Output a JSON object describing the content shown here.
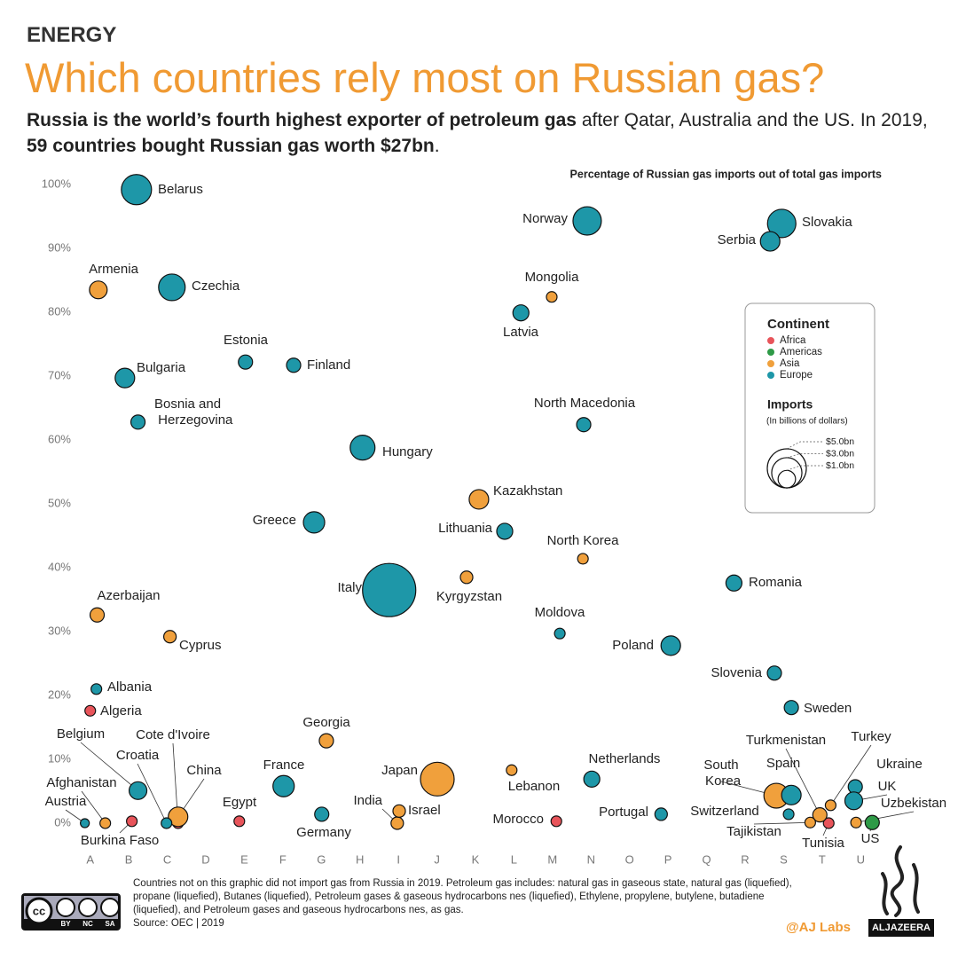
{
  "header": {
    "kicker": "ENERGY",
    "title": "Which countries rely most on Russian gas?",
    "subtitle": [
      {
        "text": "Russia is the world’s fourth highest exporter of petroleum gas",
        "bold": true
      },
      {
        "text": " after Qatar, Australia and the US. In 2019, ",
        "bold": false
      },
      {
        "text": "59 countries bought Russian gas worth $27bn",
        "bold": true
      },
      {
        "text": ".",
        "bold": false
      }
    ]
  },
  "chart_data": {
    "type": "bubble",
    "y_label": "Percentage of Russian gas imports out of total gas imports",
    "xlim": [
      -0.5,
      20.5
    ],
    "ylim": [
      0,
      100
    ],
    "xticks": [
      {
        "value": 0,
        "label": "A"
      },
      {
        "value": 1,
        "label": "B"
      },
      {
        "value": 2,
        "label": "C"
      },
      {
        "value": 3,
        "label": "D"
      },
      {
        "value": 4,
        "label": "E"
      },
      {
        "value": 5,
        "label": "F"
      },
      {
        "value": 6,
        "label": "G"
      },
      {
        "value": 7,
        "label": "H"
      },
      {
        "value": 8,
        "label": "I"
      },
      {
        "value": 9,
        "label": "J"
      },
      {
        "value": 10,
        "label": "K"
      },
      {
        "value": 11,
        "label": "L"
      },
      {
        "value": 12,
        "label": "M"
      },
      {
        "value": 13,
        "label": "N"
      },
      {
        "value": 14,
        "label": "O"
      },
      {
        "value": 15,
        "label": "P"
      },
      {
        "value": 16,
        "label": "Q"
      },
      {
        "value": 17,
        "label": "R"
      },
      {
        "value": 18,
        "label": "S"
      },
      {
        "value": 19,
        "label": "T"
      },
      {
        "value": 20,
        "label": "U"
      }
    ],
    "yticks": [
      {
        "value": 0,
        "label": "0%"
      },
      {
        "value": 10,
        "label": "10%"
      },
      {
        "value": 20,
        "label": "20%"
      },
      {
        "value": 30,
        "label": "30%"
      },
      {
        "value": 40,
        "label": "40%"
      },
      {
        "value": 50,
        "label": "50%"
      },
      {
        "value": 60,
        "label": "60%"
      },
      {
        "value": 70,
        "label": "70%"
      },
      {
        "value": 80,
        "label": "80%"
      },
      {
        "value": 90,
        "label": "90%"
      },
      {
        "value": 100,
        "label": "100%"
      }
    ],
    "grid": false,
    "legend_title": "Continent",
    "size_legend": {
      "title": "Imports",
      "subtitle": "(In billions of dollars)",
      "values": [
        {
          "value": 5,
          "label": "$5.0bn"
        },
        {
          "value": 3,
          "label": "$3.0bn"
        },
        {
          "value": 1,
          "label": "$1.0bn"
        }
      ]
    },
    "series": [
      {
        "name": "Africa",
        "color": "#e8545a",
        "labels": [
          "Algeria",
          "Burkina Faso",
          "Cote d'Ivoire",
          "Egypt",
          "Morocco",
          "Tunisia"
        ],
        "x": [
          0,
          1.08,
          2.28,
          3.87,
          12.1,
          19.17
        ],
        "values": [
          17.6,
          0.3,
          0,
          0.3,
          0.3,
          0
        ],
        "sizes": [
          0.37,
          0.37,
          0.37,
          0.37,
          0.37,
          0.37
        ]
      },
      {
        "name": "Americas",
        "color": "#2e9a47",
        "labels": [
          "US"
        ],
        "x": [
          20.3
        ],
        "values": [
          0.1
        ],
        "sizes": [
          0.66
        ]
      },
      {
        "name": "Asia",
        "color": "#f0a03c",
        "labels": [
          "Armenia",
          "Mongolia",
          "Kazakhstan",
          "North Korea",
          "Kyrgyzstan",
          "Azerbaijan",
          "Cyprus",
          "Georgia",
          "Japan",
          "Lebanon",
          "India",
          "Israel",
          "China",
          "Afghanistan",
          "South Korea",
          "Turkmenistan",
          "Turkey",
          "Tajikistan",
          "Uzbekistan"
        ],
        "x": [
          0.21,
          11.98,
          10.09,
          12.79,
          9.77,
          0.18,
          2.07,
          6.13,
          9.01,
          10.94,
          7.97,
          8.02,
          2.28,
          0.39,
          17.81,
          18.94,
          19.22,
          18.69,
          19.88
        ],
        "values": [
          83.5,
          82.4,
          50.7,
          41.4,
          38.5,
          32.6,
          29.2,
          12.9,
          6.9,
          8.3,
          0,
          1.9,
          1,
          0,
          4.3,
          1.3,
          2.8,
          0.1,
          0.1
        ],
        "sizes": [
          1.03,
          0.37,
          1.25,
          0.37,
          0.51,
          0.66,
          0.51,
          0.66,
          3.73,
          0.37,
          0.51,
          0.51,
          1.25,
          0.37,
          2.02,
          0.66,
          0.37,
          0.37,
          0.37
        ]
      },
      {
        "name": "Europe",
        "color": "#1e97a8",
        "labels": [
          "Belarus",
          "Norway",
          "Slovakia",
          "Serbia",
          "Czechia",
          "Latvia",
          "Bulgaria",
          "Estonia",
          "Finland",
          "Bosnia and Herzegovina",
          "North Macedonia",
          "Hungary",
          "Greece",
          "Lithuania",
          "Italy",
          "Romania",
          "Moldova",
          "Poland",
          "Slovenia",
          "Sweden",
          "Albania",
          "Belgium",
          "Croatia",
          "Austria",
          "France",
          "Germany",
          "Netherlands",
          "Portugal",
          "Spain",
          "Switzerland",
          "Ukraine",
          "UK"
        ],
        "x": [
          1.2,
          12.9,
          17.95,
          17.65,
          2.12,
          11.18,
          0.9,
          4.03,
          5.28,
          1.24,
          12.81,
          7.07,
          5.81,
          10.76,
          7.76,
          16.71,
          12.19,
          15.07,
          17.76,
          18.2,
          0.16,
          1.24,
          1.98,
          -0.14,
          5.02,
          6.01,
          13.02,
          14.82,
          18.2,
          18.13,
          19.86,
          19.82
        ],
        "values": [
          99.2,
          94.3,
          93.9,
          91.1,
          83.9,
          79.9,
          69.7,
          72.2,
          71.7,
          62.8,
          62.4,
          58.8,
          47.1,
          45.7,
          36.5,
          37.6,
          29.7,
          27.8,
          23.5,
          18.1,
          21,
          5.1,
          0,
          0,
          5.8,
          1.4,
          6.9,
          1.4,
          4.4,
          1.4,
          5.7,
          3.5
        ],
        "sizes": [
          2.98,
          2.64,
          2.64,
          1.25,
          2.32,
          0.84,
          1.25,
          0.66,
          0.66,
          0.66,
          0.66,
          2.02,
          1.49,
          0.84,
          9.3,
          0.84,
          0.37,
          1.25,
          0.66,
          0.66,
          0.37,
          1.03,
          0.37,
          0.26,
          1.49,
          0.66,
          0.84,
          0.51,
          1.25,
          0.37,
          0.66,
          1.03
        ]
      }
    ]
  },
  "footnote": "Countries not on this graphic did not import gas from Russia in 2019. Petroleum gas includes: natural gas in gaseous state, natural gas (liquefied), propane (liquefied), Butanes (liquefied), Petroleum gases & gaseous hydrocarbons nes (liquefied), Ethylene, propylene, butylene, butadiene (liquefied), and Petroleum gases and gaseous hydrocarbons nes, as gas.",
  "source": "Source: OEC | 2019",
  "license": {
    "labels": [
      "BY",
      "NC",
      "SA"
    ]
  },
  "credit": "@AJ Labs",
  "logo": "ALJAZEERA"
}
